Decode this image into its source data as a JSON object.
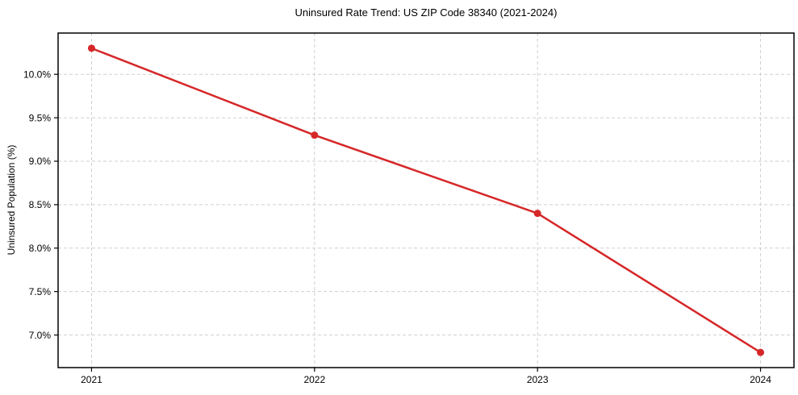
{
  "chart_data": {
    "type": "line",
    "title": "Uninsured Rate Trend: US ZIP Code 38340 (2021-2024)",
    "xlabel": "",
    "ylabel": "Uninsured Population (%)",
    "x": [
      2021,
      2022,
      2023,
      2024
    ],
    "x_tick_labels": [
      "2021",
      "2022",
      "2023",
      "2024"
    ],
    "y_ticks": [
      7.0,
      7.5,
      8.0,
      8.5,
      9.0,
      9.5,
      10.0
    ],
    "y_tick_labels": [
      "7.0%",
      "7.5%",
      "8.0%",
      "8.5%",
      "9.0%",
      "9.5%",
      "10.0%"
    ],
    "ylim": [
      6.625,
      10.475
    ],
    "x_margin_frac": 0.05,
    "grid": true,
    "grid_style": "dashed",
    "legend_position": "none",
    "series": [
      {
        "name": "Uninsured Population (%)",
        "values": [
          10.3,
          9.3,
          8.4,
          6.8
        ],
        "color": "#d62728",
        "marker": "circle"
      }
    ],
    "colors": {
      "background": "#ffffff",
      "grid": "#cfcfcf",
      "axis": "#000000",
      "text": "#000000"
    }
  }
}
